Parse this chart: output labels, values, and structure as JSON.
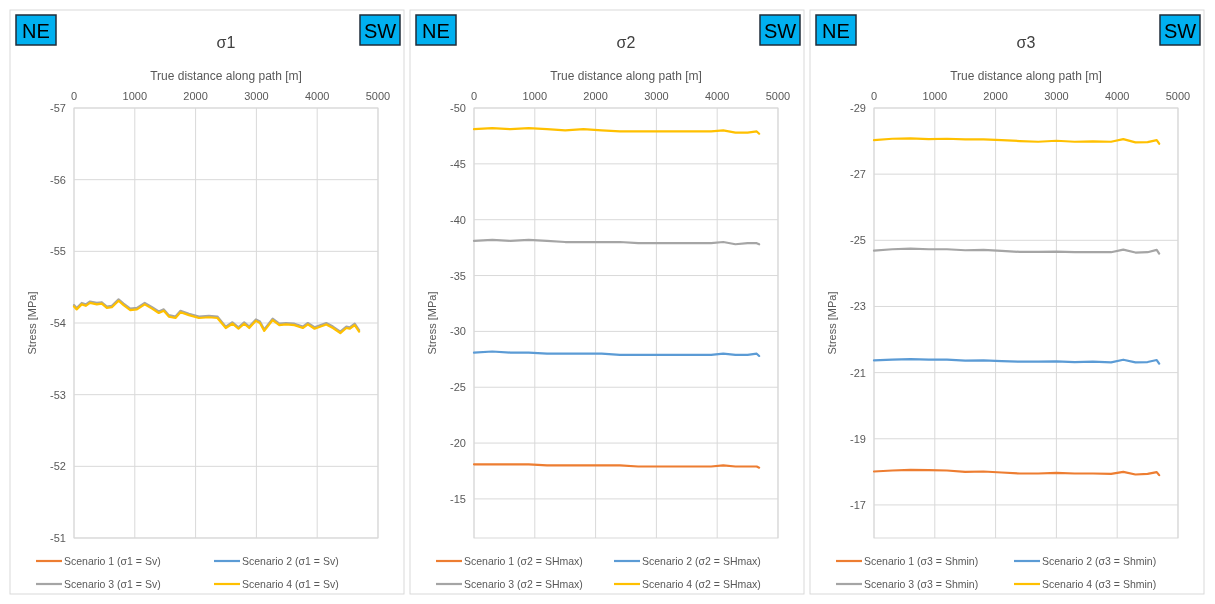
{
  "chart_data": [
    {
      "type": "line",
      "title": "σ1",
      "xlabel": "True distance along path [m]",
      "ylabel": "Stress [MPa]",
      "annotations": [
        "NE",
        "SW"
      ],
      "xlim": [
        0,
        5000
      ],
      "xticks": [
        0,
        1000,
        2000,
        3000,
        4000,
        5000
      ],
      "ylim": [
        -51,
        -57
      ],
      "yticks": [
        -57,
        -56,
        -55,
        -54,
        -53,
        -52,
        -51
      ],
      "grid": true,
      "legend": "bottom",
      "x": [
        0,
        44,
        127,
        193,
        264,
        375,
        457,
        540,
        623,
        733,
        815,
        926,
        1036,
        1163,
        1284,
        1394,
        1477,
        1559,
        1669,
        1752,
        1890,
        2055,
        2220,
        2358,
        2496,
        2606,
        2705,
        2799,
        2882,
        2992,
        3058,
        3129,
        3267,
        3377,
        3488,
        3625,
        3763,
        3846,
        3956,
        4149,
        4259,
        4380,
        4479,
        4534,
        4617,
        4689
      ],
      "series": [
        {
          "name": "Scenario 1 (σ1 = Sv)",
          "color": "#ed7d31",
          "values": [
            null,
            null,
            null,
            null,
            null,
            null,
            null,
            null,
            null,
            null,
            null,
            null,
            null,
            null,
            null,
            null,
            null,
            null,
            null,
            null,
            null,
            null,
            null,
            null,
            null,
            null,
            null,
            null,
            null,
            null,
            null,
            null,
            null,
            null,
            null,
            null,
            null,
            null,
            null,
            null,
            null,
            null,
            null,
            null,
            null,
            null
          ]
        },
        {
          "name": "Scenario 2 (σ1 = Sv)",
          "color": "#5b9bd5",
          "values": [
            null,
            null,
            null,
            null,
            null,
            null,
            null,
            null,
            null,
            null,
            null,
            null,
            null,
            null,
            null,
            null,
            null,
            null,
            null,
            null,
            null,
            null,
            null,
            null,
            null,
            null,
            null,
            null,
            null,
            null,
            null,
            null,
            null,
            null,
            null,
            null,
            null,
            null,
            null,
            null,
            null,
            null,
            null,
            null,
            null,
            null
          ]
        },
        {
          "name": "Scenario 3 (σ1 = Sv)",
          "color": "#a5a5a5",
          "values": [
            -54.25,
            -54.21,
            -54.28,
            -54.26,
            -54.3,
            -54.28,
            -54.29,
            -54.23,
            -54.24,
            -54.33,
            -54.27,
            -54.2,
            -54.21,
            -54.28,
            -54.22,
            -54.16,
            -54.19,
            -54.11,
            -54.09,
            -54.17,
            -54.13,
            -54.09,
            -54.1,
            -54.09,
            -53.95,
            -54.01,
            -53.94,
            -54.01,
            -53.95,
            -54.05,
            -54.02,
            -53.91,
            -54.06,
            -53.99,
            -54.0,
            -53.99,
            -53.95,
            -54.0,
            -53.94,
            -54.0,
            -53.95,
            -53.88,
            -53.95,
            -53.94,
            -53.99,
            -53.9
          ]
        },
        {
          "name": "Scenario 4 (σ1 = Sv)",
          "color": "#ffc000",
          "values": [
            -54.23,
            -54.19,
            -54.26,
            -54.24,
            -54.28,
            -54.26,
            -54.27,
            -54.21,
            -54.22,
            -54.31,
            -54.25,
            -54.18,
            -54.19,
            -54.26,
            -54.2,
            -54.14,
            -54.17,
            -54.09,
            -54.07,
            -54.15,
            -54.11,
            -54.07,
            -54.08,
            -54.07,
            -53.93,
            -53.99,
            -53.92,
            -53.99,
            -53.93,
            -54.03,
            -54.0,
            -53.89,
            -54.04,
            -53.97,
            -53.98,
            -53.97,
            -53.93,
            -53.98,
            -53.92,
            -53.98,
            -53.93,
            -53.86,
            -53.93,
            -53.92,
            -53.97,
            -53.88
          ]
        }
      ]
    },
    {
      "type": "line",
      "title": "σ2",
      "xlabel": "True distance along path [m]",
      "ylabel": "Stress [MPa]",
      "annotations": [
        "NE",
        "SW"
      ],
      "xlim": [
        0,
        5000
      ],
      "xticks": [
        0,
        1000,
        2000,
        3000,
        4000,
        5000
      ],
      "ylim": [
        -11.5,
        -50
      ],
      "yticks": [
        -50,
        -45,
        -40,
        -35,
        -30,
        -25,
        -20,
        -15
      ],
      "grid": true,
      "legend": "bottom",
      "x": [
        0,
        300,
        600,
        900,
        1200,
        1500,
        1800,
        2100,
        2400,
        2700,
        3000,
        3300,
        3600,
        3900,
        4100,
        4300,
        4500,
        4650,
        4690
      ],
      "series": [
        {
          "name": "Scenario 1 (σ2 = SHmax)",
          "color": "#ed7d31",
          "values": [
            -18.1,
            -18.1,
            -18.1,
            -18.1,
            -18.0,
            -18.0,
            -18.0,
            -18.0,
            -18.0,
            -17.9,
            -17.9,
            -17.9,
            -17.9,
            -17.9,
            -18.0,
            -17.9,
            -17.9,
            -17.9,
            -17.8
          ]
        },
        {
          "name": "Scenario 2 (σ2 = SHmax)",
          "color": "#5b9bd5",
          "values": [
            -28.1,
            -28.2,
            -28.1,
            -28.1,
            -28.0,
            -28.0,
            -28.0,
            -28.0,
            -27.9,
            -27.9,
            -27.9,
            -27.9,
            -27.9,
            -27.9,
            -28.0,
            -27.9,
            -27.9,
            -28.0,
            -27.8
          ]
        },
        {
          "name": "Scenario 3 (σ2 = SHmax)",
          "color": "#a5a5a5",
          "values": [
            -38.1,
            -38.2,
            -38.1,
            -38.2,
            -38.1,
            -38.0,
            -38.0,
            -38.0,
            -38.0,
            -37.9,
            -37.9,
            -37.9,
            -37.9,
            -37.9,
            -38.0,
            -37.8,
            -37.9,
            -37.9,
            -37.8
          ]
        },
        {
          "name": "Scenario 4 (σ2 = SHmax)",
          "color": "#ffc000",
          "values": [
            -48.1,
            -48.2,
            -48.1,
            -48.2,
            -48.1,
            -48.0,
            -48.1,
            -48.0,
            -47.9,
            -47.9,
            -47.9,
            -47.9,
            -47.9,
            -47.9,
            -48.0,
            -47.8,
            -47.8,
            -47.9,
            -47.7
          ]
        }
      ]
    },
    {
      "type": "line",
      "title": "σ3",
      "xlabel": "True distance along path [m]",
      "ylabel": "Stress [MPa]",
      "annotations": [
        "NE",
        "SW"
      ],
      "xlim": [
        0,
        5000
      ],
      "xticks": [
        0,
        1000,
        2000,
        3000,
        4000,
        5000
      ],
      "ylim": [
        -16,
        -29
      ],
      "yticks": [
        -29,
        -27,
        -25,
        -23,
        -21,
        -19,
        -17
      ],
      "grid": true,
      "legend": "bottom",
      "x": [
        0,
        300,
        600,
        900,
        1200,
        1500,
        1800,
        2100,
        2400,
        2700,
        3000,
        3300,
        3600,
        3900,
        4100,
        4300,
        4500,
        4650,
        4690
      ],
      "series": [
        {
          "name": "Scenario 1 (σ3 = Shmin)",
          "color": "#ed7d31",
          "values": [
            -18.01,
            -18.04,
            -18.06,
            -18.05,
            -18.04,
            -18.0,
            -18.01,
            -17.98,
            -17.95,
            -17.95,
            -17.97,
            -17.95,
            -17.95,
            -17.94,
            -18.0,
            -17.92,
            -17.94,
            -17.99,
            -17.9
          ]
        },
        {
          "name": "Scenario 2 (σ3 = Shmin)",
          "color": "#5b9bd5",
          "values": [
            -21.37,
            -21.39,
            -21.41,
            -21.39,
            -21.39,
            -21.36,
            -21.37,
            -21.35,
            -21.33,
            -21.33,
            -21.34,
            -21.32,
            -21.33,
            -21.31,
            -21.39,
            -21.31,
            -21.32,
            -21.38,
            -21.27
          ]
        },
        {
          "name": "Scenario 3 (σ3 = Shmin)",
          "color": "#a5a5a5",
          "values": [
            -24.69,
            -24.73,
            -24.75,
            -24.73,
            -24.73,
            -24.7,
            -24.71,
            -24.68,
            -24.65,
            -24.65,
            -24.66,
            -24.64,
            -24.64,
            -24.64,
            -24.72,
            -24.63,
            -24.64,
            -24.71,
            -24.6
          ]
        },
        {
          "name": "Scenario 4 (σ3 = Shmin)",
          "color": "#ffc000",
          "values": [
            -28.03,
            -28.07,
            -28.08,
            -28.06,
            -28.07,
            -28.05,
            -28.05,
            -28.03,
            -28.0,
            -27.98,
            -28.01,
            -27.98,
            -27.99,
            -27.98,
            -28.06,
            -27.96,
            -27.97,
            -28.03,
            -27.92
          ]
        }
      ]
    }
  ]
}
